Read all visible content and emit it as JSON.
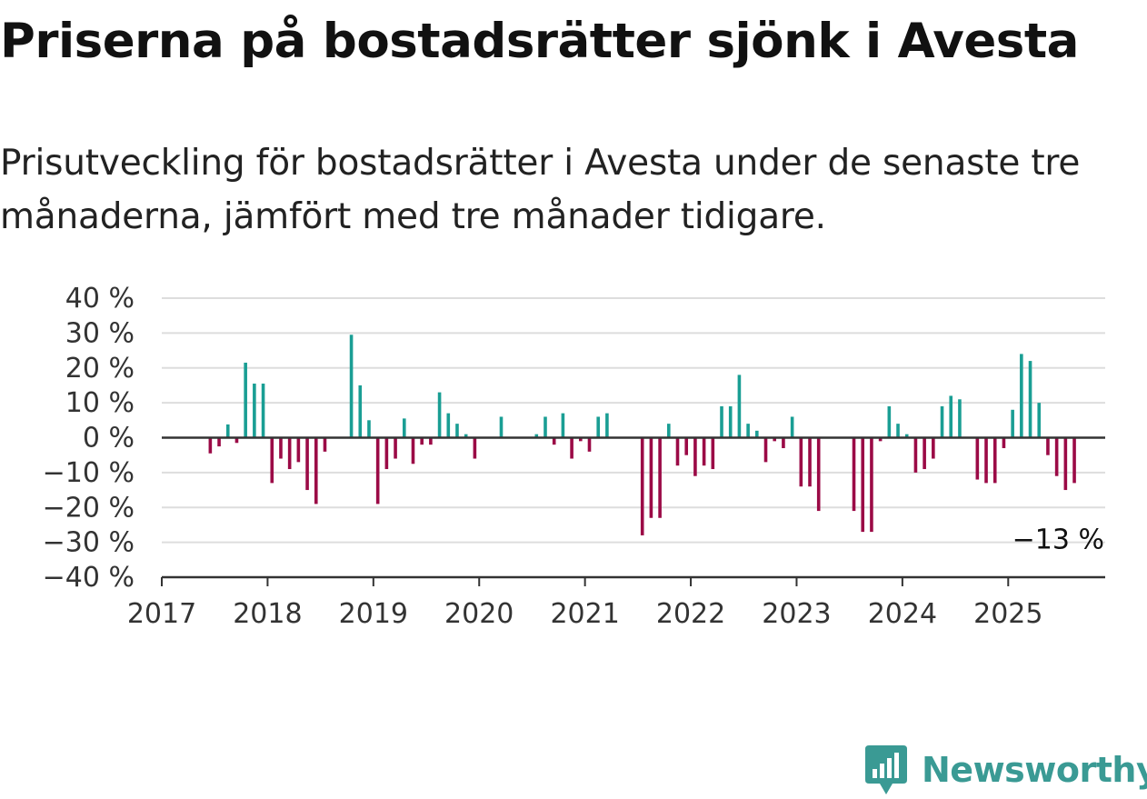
{
  "title": "Priserna på bostadsrätter sjönk i Avesta",
  "subtitle": "Prisutveckling för bostadsrätter i Avesta under de senaste tre månaderna, jämfört med tre månader tidigare.",
  "brand": {
    "name": "Newsworthy",
    "color": "#3a9a94",
    "icon": "newsworthy-chart-bubble-icon"
  },
  "colors": {
    "positive": "#1a9e94",
    "negative": "#9b0a46",
    "grid": "#dddddd",
    "axis": "#333333"
  },
  "chart_data": {
    "type": "bar",
    "title": "",
    "xlabel": "",
    "ylabel": "",
    "ylim": [
      -40,
      40
    ],
    "yticks": [
      {
        "value": 40,
        "label": "40 %"
      },
      {
        "value": 30,
        "label": "30 %"
      },
      {
        "value": 20,
        "label": "20 %"
      },
      {
        "value": 10,
        "label": "10 %"
      },
      {
        "value": 0,
        "label": "0 %"
      },
      {
        "value": -10,
        "label": "−10 %"
      },
      {
        "value": -20,
        "label": "−20 %"
      },
      {
        "value": -30,
        "label": "−30 %"
      },
      {
        "value": -40,
        "label": "−40 %"
      }
    ],
    "xticks": [
      "2017",
      "2018",
      "2019",
      "2020",
      "2021",
      "2022",
      "2023",
      "2024",
      "2025"
    ],
    "x_start": "2017-01",
    "grid": true,
    "annotation": {
      "text": "−13 %",
      "month": "2025-06",
      "value": -13
    },
    "series": [
      {
        "values": [
          {
            "month": "2017-06",
            "value": -4.5
          },
          {
            "month": "2017-07",
            "value": -2.5
          },
          {
            "month": "2017-08",
            "value": 3.8
          },
          {
            "month": "2017-09",
            "value": -1.5
          },
          {
            "month": "2017-10",
            "value": 21.5
          },
          {
            "month": "2017-11",
            "value": 15.5
          },
          {
            "month": "2017-12",
            "value": 15.5
          },
          {
            "month": "2018-01",
            "value": -13
          },
          {
            "month": "2018-02",
            "value": -6
          },
          {
            "month": "2018-03",
            "value": -9
          },
          {
            "month": "2018-04",
            "value": -7
          },
          {
            "month": "2018-05",
            "value": -15
          },
          {
            "month": "2018-06",
            "value": -19
          },
          {
            "month": "2018-07",
            "value": -4
          },
          {
            "month": "2018-10",
            "value": 29.5
          },
          {
            "month": "2018-11",
            "value": 15
          },
          {
            "month": "2018-12",
            "value": 5
          },
          {
            "month": "2019-01",
            "value": -19
          },
          {
            "month": "2019-02",
            "value": -9
          },
          {
            "month": "2019-03",
            "value": -6
          },
          {
            "month": "2019-04",
            "value": 5.5
          },
          {
            "month": "2019-05",
            "value": -7.5
          },
          {
            "month": "2019-06",
            "value": -2
          },
          {
            "month": "2019-07",
            "value": -2
          },
          {
            "month": "2019-08",
            "value": 13
          },
          {
            "month": "2019-09",
            "value": 7
          },
          {
            "month": "2019-10",
            "value": 4
          },
          {
            "month": "2019-11",
            "value": 1
          },
          {
            "month": "2019-12",
            "value": -6
          },
          {
            "month": "2020-03",
            "value": 6
          },
          {
            "month": "2020-07",
            "value": 1
          },
          {
            "month": "2020-08",
            "value": 6
          },
          {
            "month": "2020-09",
            "value": -2
          },
          {
            "month": "2020-10",
            "value": 7
          },
          {
            "month": "2020-11",
            "value": -6
          },
          {
            "month": "2020-12",
            "value": -1
          },
          {
            "month": "2021-01",
            "value": -4
          },
          {
            "month": "2021-02",
            "value": 6
          },
          {
            "month": "2021-03",
            "value": 7
          },
          {
            "month": "2021-07",
            "value": -28
          },
          {
            "month": "2021-08",
            "value": -23
          },
          {
            "month": "2021-09",
            "value": -23
          },
          {
            "month": "2021-10",
            "value": 4
          },
          {
            "month": "2021-11",
            "value": -8
          },
          {
            "month": "2021-12",
            "value": -5
          },
          {
            "month": "2022-01",
            "value": -11
          },
          {
            "month": "2022-02",
            "value": -8
          },
          {
            "month": "2022-03",
            "value": -9
          },
          {
            "month": "2022-04",
            "value": 9
          },
          {
            "month": "2022-05",
            "value": 9
          },
          {
            "month": "2022-06",
            "value": 18
          },
          {
            "month": "2022-07",
            "value": 4
          },
          {
            "month": "2022-08",
            "value": 2
          },
          {
            "month": "2022-09",
            "value": -7
          },
          {
            "month": "2022-10",
            "value": -1
          },
          {
            "month": "2022-11",
            "value": -3
          },
          {
            "month": "2022-12",
            "value": 6
          },
          {
            "month": "2023-01",
            "value": -14
          },
          {
            "month": "2023-02",
            "value": -14
          },
          {
            "month": "2023-03",
            "value": -21
          },
          {
            "month": "2023-07",
            "value": -21
          },
          {
            "month": "2023-08",
            "value": -27
          },
          {
            "month": "2023-09",
            "value": -27
          },
          {
            "month": "2023-10",
            "value": -1
          },
          {
            "month": "2023-11",
            "value": 9
          },
          {
            "month": "2023-12",
            "value": 4
          },
          {
            "month": "2024-01",
            "value": 1
          },
          {
            "month": "2024-02",
            "value": -10
          },
          {
            "month": "2024-03",
            "value": -9
          },
          {
            "month": "2024-04",
            "value": -6
          },
          {
            "month": "2024-05",
            "value": 9
          },
          {
            "month": "2024-06",
            "value": 12
          },
          {
            "month": "2024-07",
            "value": 11
          },
          {
            "month": "2024-09",
            "value": -12
          },
          {
            "month": "2024-10",
            "value": -13
          },
          {
            "month": "2024-11",
            "value": -13
          },
          {
            "month": "2024-12",
            "value": -3
          },
          {
            "month": "2025-01",
            "value": 8
          },
          {
            "month": "2025-02",
            "value": 24
          },
          {
            "month": "2025-03",
            "value": 22
          },
          {
            "month": "2025-04",
            "value": 10
          },
          {
            "month": "2025-05",
            "value": -5
          },
          {
            "month": "2025-06",
            "value": -11
          },
          {
            "month": "2025-07",
            "value": -15
          },
          {
            "month": "2025-08",
            "value": -13
          }
        ]
      }
    ]
  }
}
